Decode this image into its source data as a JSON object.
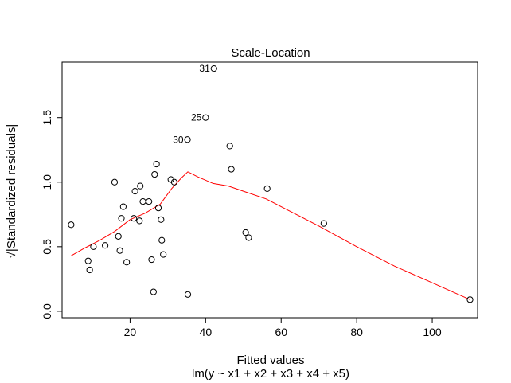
{
  "chart_data": {
    "type": "scatter",
    "title": "Scale-Location",
    "xlabel": "Fitted values",
    "xlabel_sub": "lm(y ~ x1 + x2 + x3 + x4 + x5)",
    "ylabel": "√|Standardized residuals|",
    "xlim": [
      2.0,
      112.0
    ],
    "ylim": [
      -0.05,
      1.93
    ],
    "xticks": [
      20,
      40,
      60,
      80,
      100
    ],
    "yticks": [
      0.0,
      0.5,
      1.0,
      1.5
    ],
    "ytick_labels": [
      "0.0",
      "0.5",
      "1.0",
      "1.5"
    ],
    "grid": false,
    "points": [
      {
        "x": 4.4,
        "y": 0.67
      },
      {
        "x": 8.9,
        "y": 0.39
      },
      {
        "x": 9.3,
        "y": 0.32
      },
      {
        "x": 10.3,
        "y": 0.5
      },
      {
        "x": 13.4,
        "y": 0.51
      },
      {
        "x": 15.9,
        "y": 1.0
      },
      {
        "x": 16.9,
        "y": 0.58
      },
      {
        "x": 17.3,
        "y": 0.47
      },
      {
        "x": 17.7,
        "y": 0.72
      },
      {
        "x": 18.2,
        "y": 0.81
      },
      {
        "x": 19.1,
        "y": 0.38
      },
      {
        "x": 21.0,
        "y": 0.72
      },
      {
        "x": 21.3,
        "y": 0.93
      },
      {
        "x": 22.5,
        "y": 0.7
      },
      {
        "x": 22.7,
        "y": 0.97
      },
      {
        "x": 23.4,
        "y": 0.85
      },
      {
        "x": 25.0,
        "y": 0.85
      },
      {
        "x": 25.7,
        "y": 0.4
      },
      {
        "x": 26.2,
        "y": 0.15
      },
      {
        "x": 26.5,
        "y": 1.06
      },
      {
        "x": 27.0,
        "y": 1.14
      },
      {
        "x": 27.5,
        "y": 0.8
      },
      {
        "x": 28.2,
        "y": 0.71
      },
      {
        "x": 28.4,
        "y": 0.55
      },
      {
        "x": 28.8,
        "y": 0.44
      },
      {
        "x": 30.8,
        "y": 1.02
      },
      {
        "x": 31.7,
        "y": 1.0
      },
      {
        "x": 35.2,
        "y": 1.33
      },
      {
        "x": 35.3,
        "y": 0.13
      },
      {
        "x": 40.0,
        "y": 1.5
      },
      {
        "x": 42.2,
        "y": 1.88
      },
      {
        "x": 46.4,
        "y": 1.28
      },
      {
        "x": 46.8,
        "y": 1.1
      },
      {
        "x": 50.6,
        "y": 0.61
      },
      {
        "x": 51.4,
        "y": 0.57
      },
      {
        "x": 56.3,
        "y": 0.95
      },
      {
        "x": 71.3,
        "y": 0.68
      },
      {
        "x": 110.0,
        "y": 0.09
      }
    ],
    "point_labels": [
      {
        "text": "31",
        "x": 42.2,
        "y": 1.88
      },
      {
        "text": "25",
        "x": 40.0,
        "y": 1.5
      },
      {
        "text": "30",
        "x": 35.2,
        "y": 1.33
      }
    ],
    "smooth_line": {
      "color": "#ff0000",
      "x": [
        4.4,
        8.0,
        12.0,
        16.0,
        20.0,
        24.0,
        28.0,
        31.0,
        33.5,
        35.3,
        38.0,
        42.0,
        46.0,
        50.0,
        56.0,
        62.0,
        70.0,
        80.0,
        90.0,
        100.0,
        110.0
      ],
      "y": [
        0.43,
        0.49,
        0.55,
        0.62,
        0.71,
        0.76,
        0.83,
        0.95,
        1.03,
        1.08,
        1.04,
        0.99,
        0.97,
        0.93,
        0.87,
        0.78,
        0.66,
        0.5,
        0.35,
        0.22,
        0.09
      ]
    }
  }
}
